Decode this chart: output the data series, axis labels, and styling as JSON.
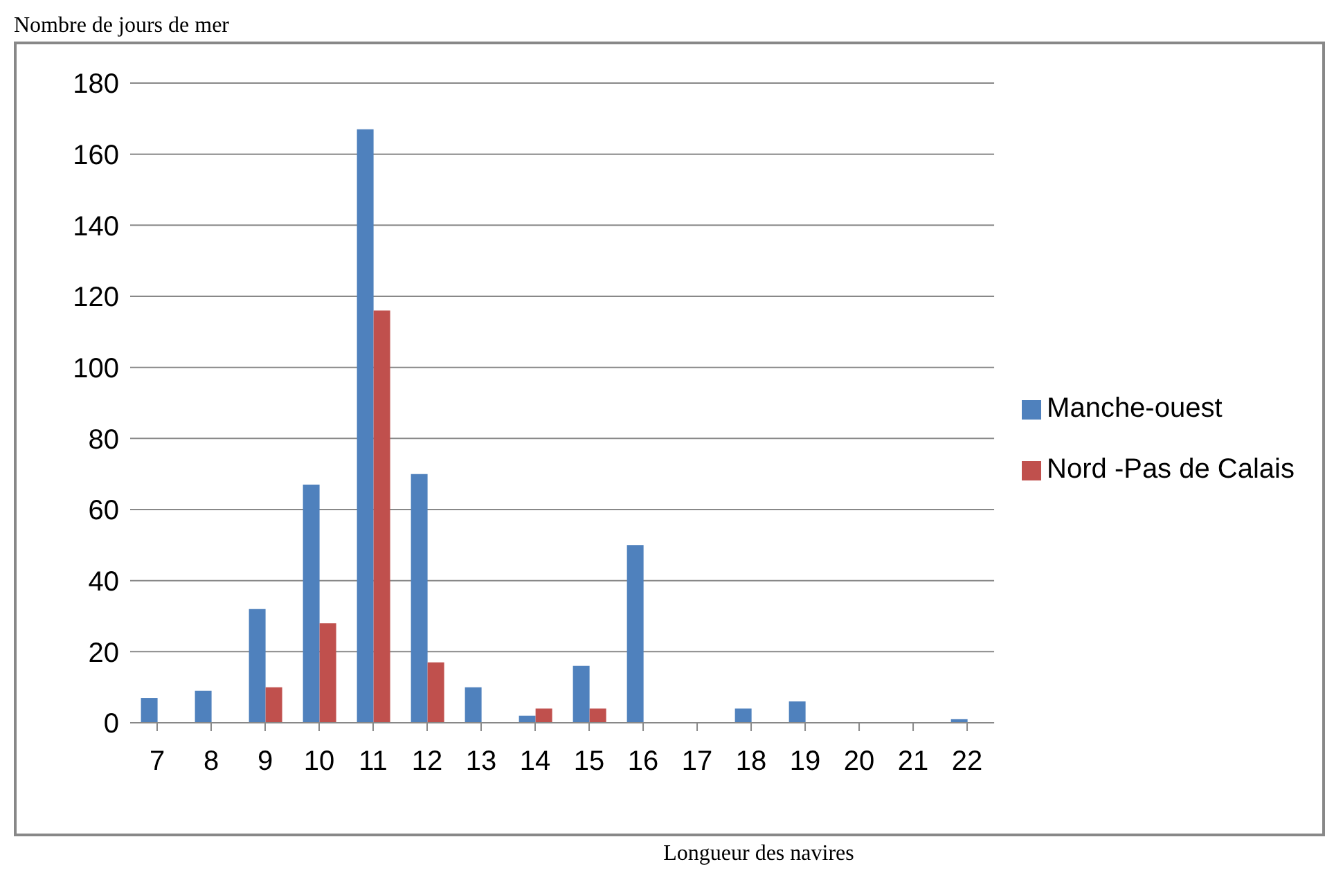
{
  "chart_data": {
    "type": "bar",
    "title": "Nombre de jours de mer",
    "xlabel": "Longueur des navires",
    "categories": [
      "7",
      "8",
      "9",
      "10",
      "11",
      "12",
      "13",
      "14",
      "15",
      "16",
      "17",
      "18",
      "19",
      "20",
      "21",
      "22"
    ],
    "series": [
      {
        "name": "Manche-ouest",
        "color": "#4f81bd",
        "values": [
          7,
          9,
          32,
          67,
          167,
          70,
          10,
          2,
          16,
          50,
          0,
          4,
          6,
          0,
          0,
          1
        ]
      },
      {
        "name": "Nord -Pas de Calais",
        "color": "#c0504d",
        "values": [
          0,
          0,
          10,
          28,
          116,
          17,
          0,
          4,
          4,
          0,
          0,
          0,
          0,
          0,
          0,
          0
        ]
      }
    ],
    "ylim": [
      0,
      180
    ],
    "yticks": [
      0,
      20,
      40,
      60,
      80,
      100,
      120,
      140,
      160,
      180
    ],
    "grid": "y",
    "legend": "right"
  }
}
